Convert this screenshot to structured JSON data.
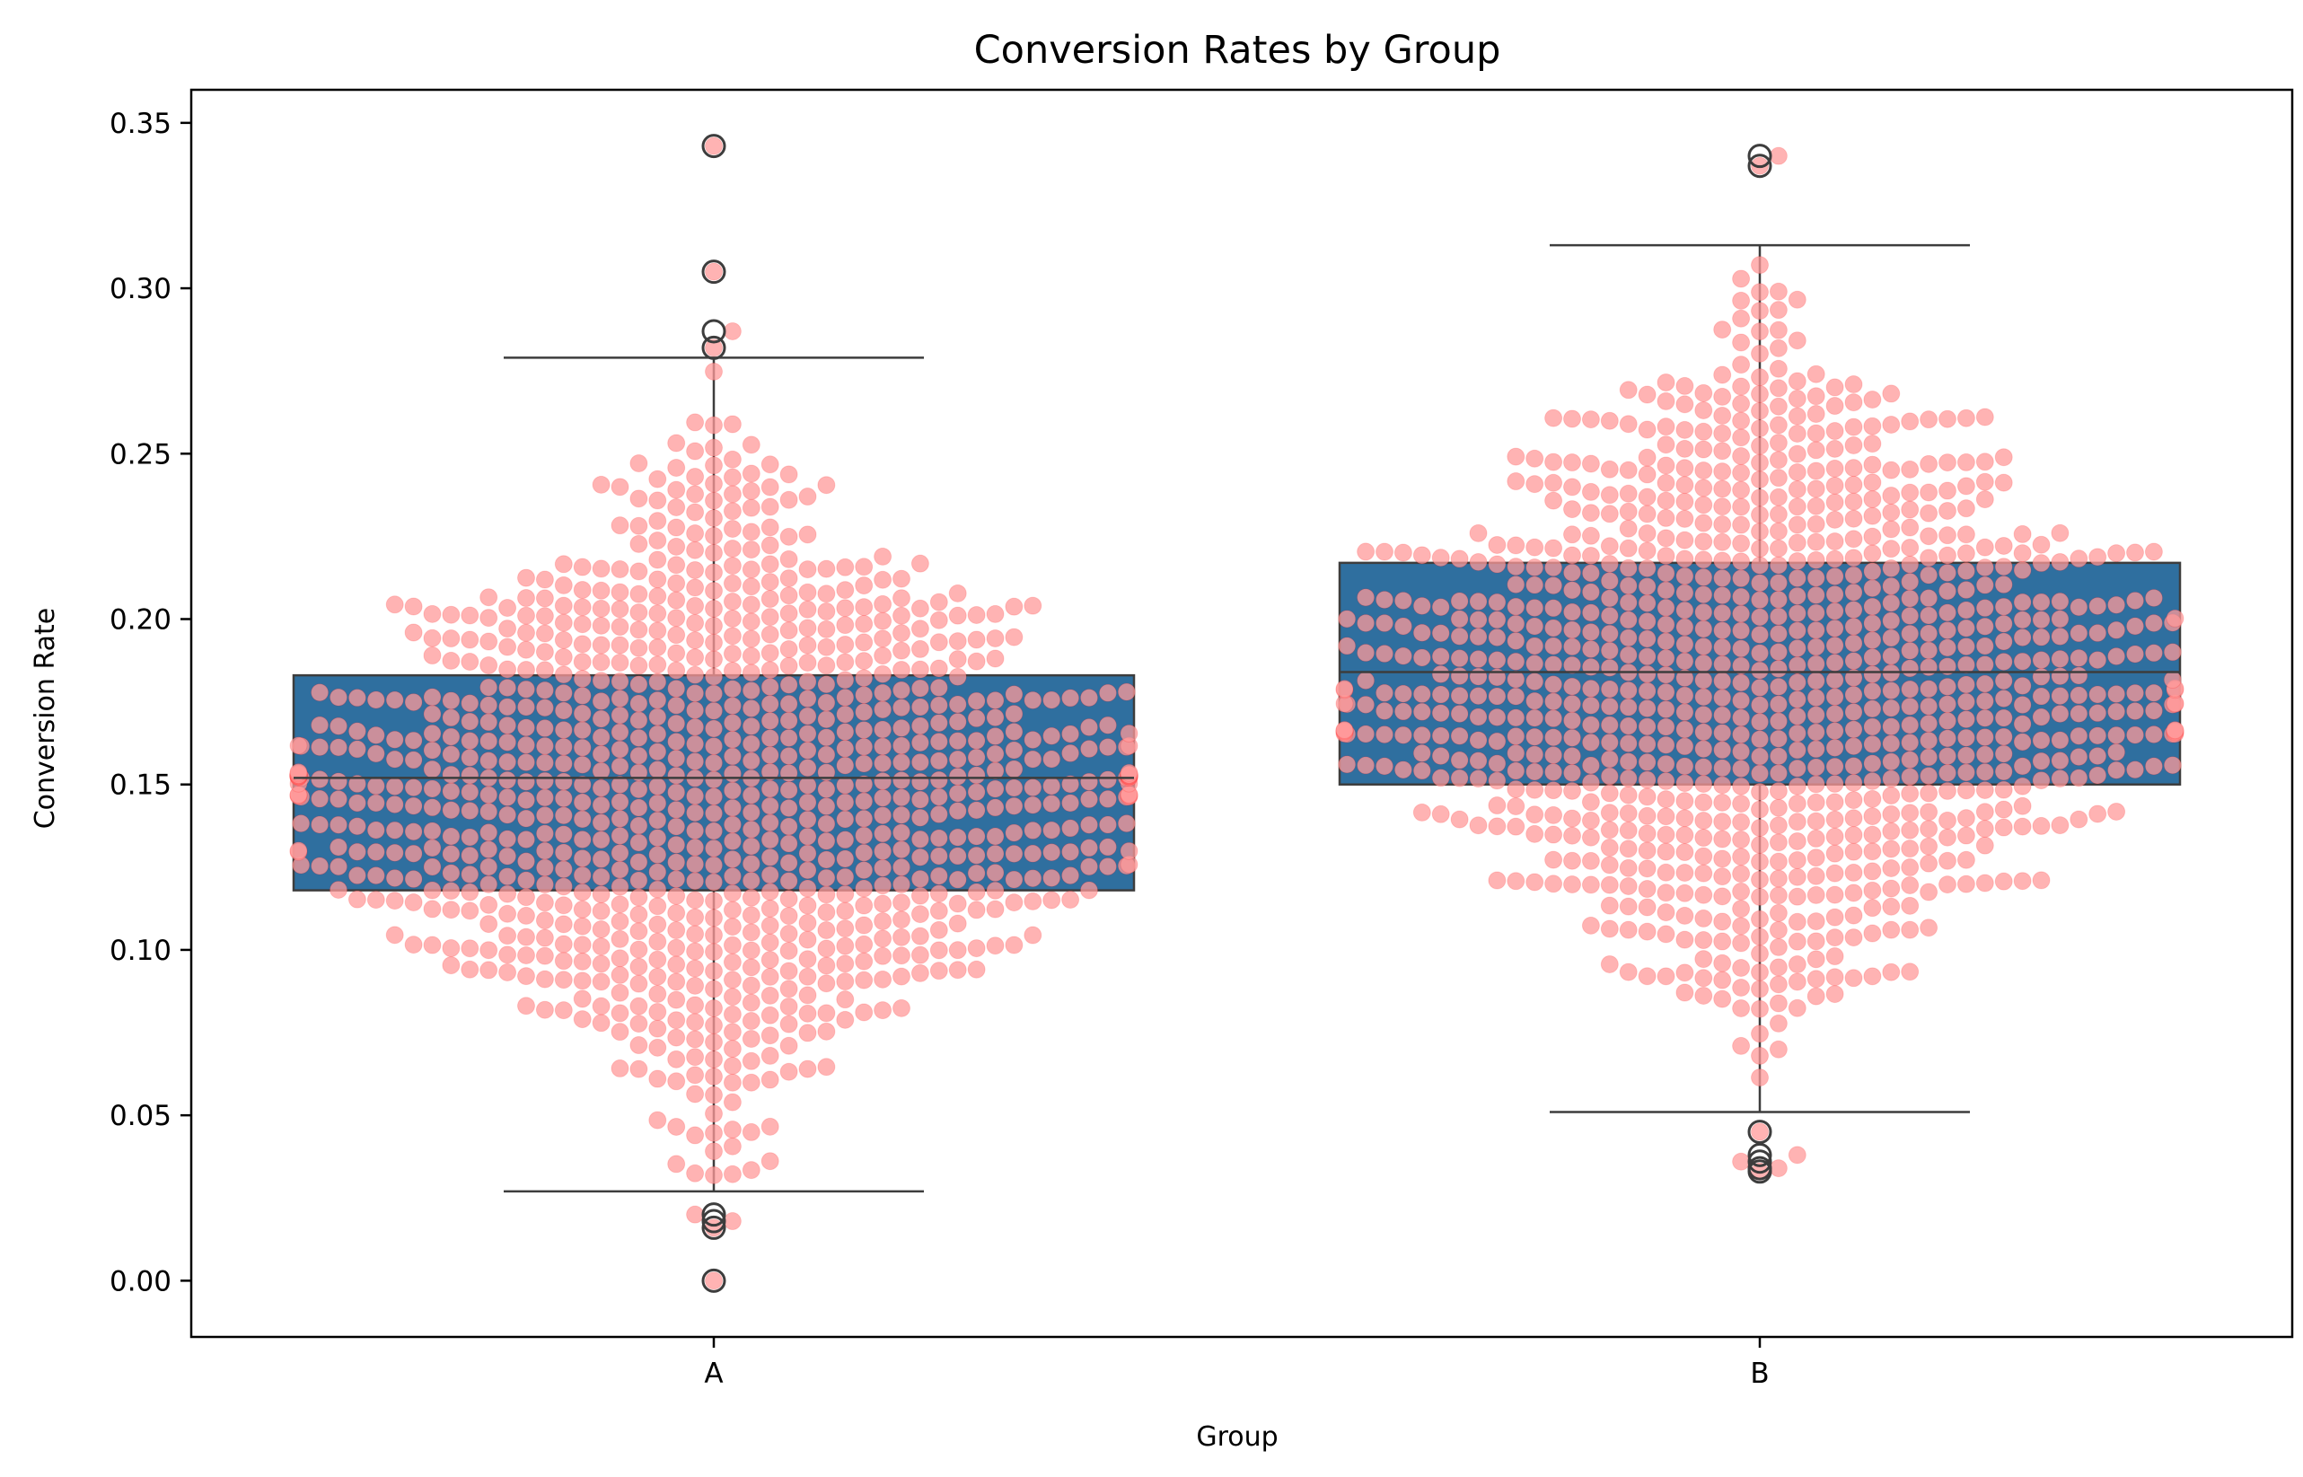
{
  "chart_data": {
    "type": "box",
    "title": "Conversion Rates by Group",
    "xlabel": "Group",
    "ylabel": "Conversion Rate",
    "categories": [
      "A",
      "B"
    ],
    "ylim": [
      -0.017,
      0.36
    ],
    "yticks": [
      0.0,
      0.05,
      0.1,
      0.15,
      0.2,
      0.25,
      0.3,
      0.35
    ],
    "ytick_labels": [
      "0.00",
      "0.05",
      "0.10",
      "0.15",
      "0.20",
      "0.25",
      "0.30",
      "0.35"
    ],
    "grid": false,
    "legend": "none",
    "box_color": "#2f6f9f",
    "box_edge_color": "#3d3d3d",
    "swarm_color": "#ff9a9a",
    "swarm_edge_color": "#ff0000",
    "boxes": [
      {
        "group": "A",
        "whisker_low": 0.027,
        "q1": 0.118,
        "median": 0.152,
        "q3": 0.183,
        "whisker_high": 0.279,
        "outliers": [
          0.343,
          0.305,
          0.287,
          0.282,
          0.02,
          0.018,
          0.016,
          0.0
        ]
      },
      {
        "group": "B",
        "whisker_low": 0.051,
        "q1": 0.15,
        "median": 0.184,
        "q3": 0.217,
        "whisker_high": 0.313,
        "outliers": [
          0.34,
          0.337,
          0.045,
          0.038,
          0.036,
          0.034,
          0.033
        ]
      }
    ],
    "swarm": [
      {
        "group": "A",
        "n": 1000,
        "mean": 0.151,
        "sd": 0.049
      },
      {
        "group": "B",
        "n": 1000,
        "mean": 0.183,
        "sd": 0.049
      }
    ]
  }
}
